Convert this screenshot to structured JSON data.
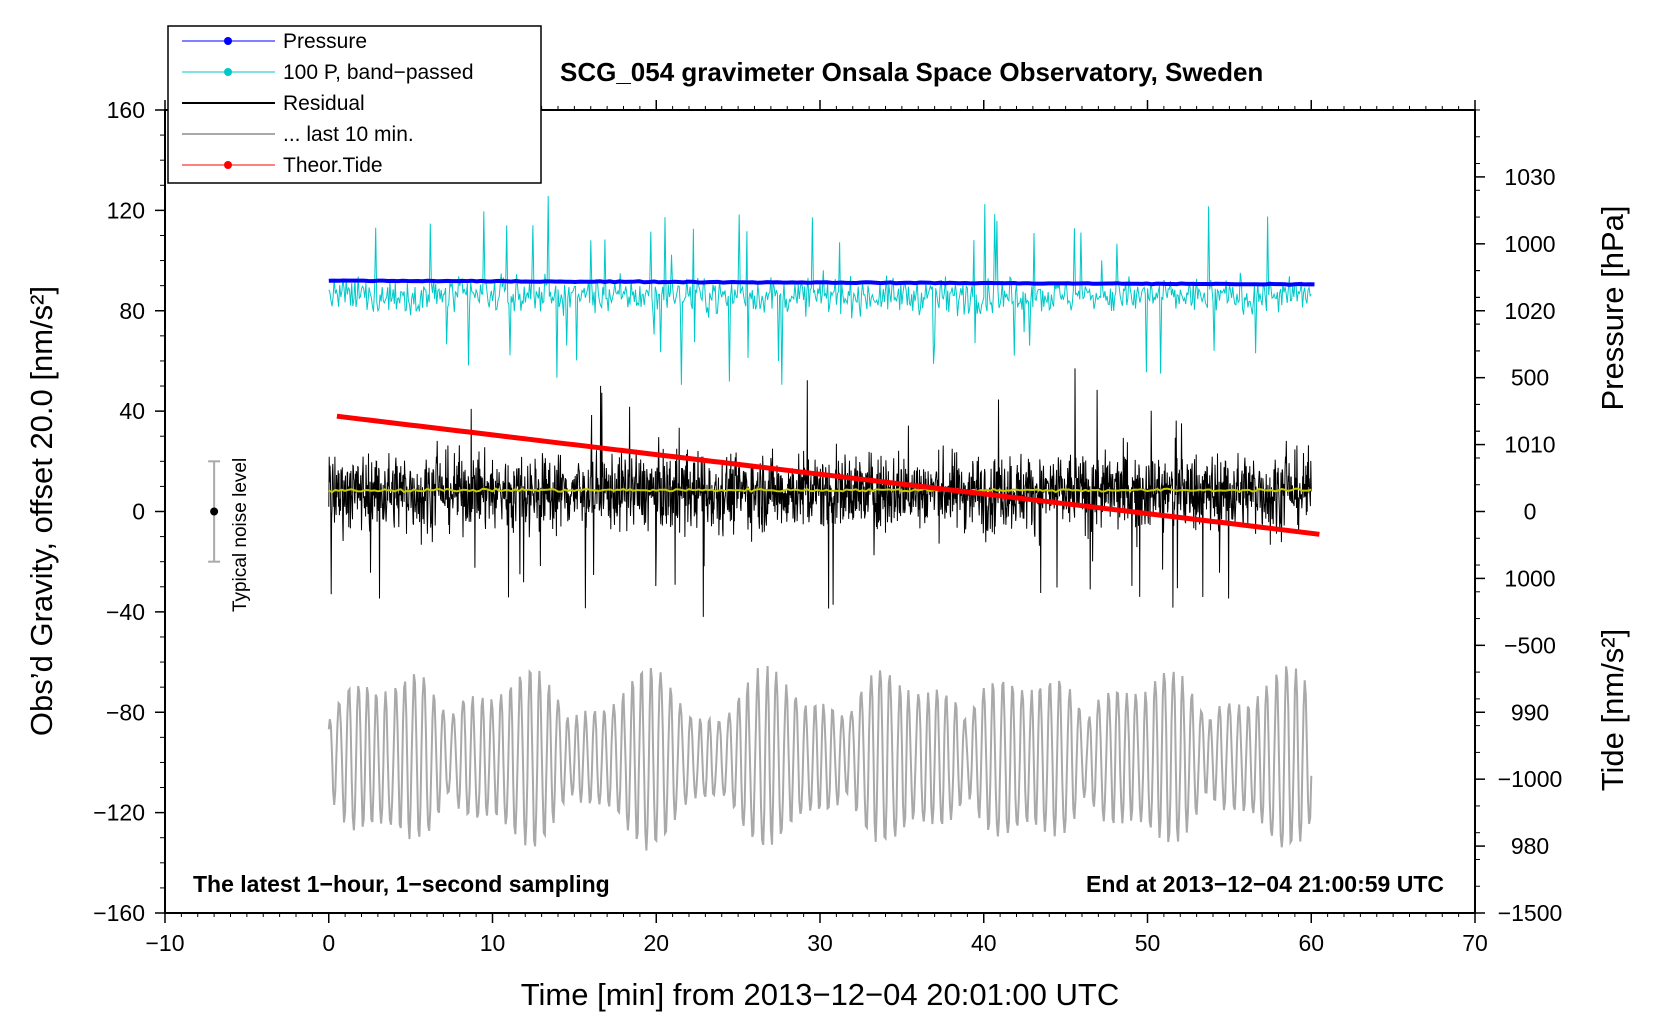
{
  "chart_data": {
    "type": "line",
    "title": "SCG_054 gravimeter Onsala Space Observatory, Sweden",
    "xlabel": "Time [min] from 2013−12−04 20:01:00 UTC",
    "ylabel_left": "Obs’d Gravity, offset 20.0 [nm/s²]",
    "ylabel_right_top": "Pressure [hPa]",
    "ylabel_right_bottom": "Tide [nm/s²]",
    "xlim": [
      -10,
      70
    ],
    "ylim_left": [
      -160,
      160
    ],
    "x_ticks": [
      -10,
      0,
      10,
      20,
      30,
      40,
      50,
      60,
      70
    ],
    "x_tick_labels": [
      "−10",
      "0",
      "10",
      "20",
      "30",
      "40",
      "50",
      "60",
      "70"
    ],
    "y_left_ticks": [
      160,
      120,
      80,
      40,
      0,
      -40,
      -80,
      -120,
      -160
    ],
    "y_left_tick_labels": [
      "160",
      "120",
      "80",
      "40",
      "0",
      "−40",
      "−80",
      "−120",
      "−160"
    ],
    "pressure_axis": {
      "range_hpa": [
        975,
        1035
      ],
      "ticks": [
        1030,
        1020,
        1010,
        1000,
        990,
        980
      ],
      "tick_labels": [
        "1030",
        "1020",
        "1010",
        "1000",
        "990",
        "980"
      ]
    },
    "tide_axis": {
      "range": [
        -1500,
        1500
      ],
      "ticks": [
        1000,
        500,
        0,
        -500,
        -1000,
        -1500
      ],
      "tick_labels": [
        "1000",
        "500",
        "0",
        "−500",
        "−1000",
        "−1500"
      ]
    },
    "annotations": {
      "bottom_left": "The latest 1−hour, 1−second sampling",
      "bottom_right": "End at 2013−12−04 21:00:59 UTC",
      "noise_label": "Typical noise level"
    },
    "noise_bar": {
      "x": -7,
      "center": 0,
      "half_range": 20
    },
    "legend": [
      {
        "label": "Pressure",
        "color": "#0000ff",
        "marker": true
      },
      {
        "label": "100 P, band−passed",
        "color": "#00c8c8",
        "marker": true
      },
      {
        "label": "Residual",
        "color": "#000000",
        "marker": false
      },
      {
        "label": "... last 10 min.",
        "color": "#a9a9a9",
        "marker": false
      },
      {
        "label": "Theor.Tide",
        "color": "#ff0000",
        "marker": true
      }
    ],
    "series": [
      {
        "name": "Pressure",
        "color": "#0000ff",
        "x_range": [
          0,
          60.2
        ],
        "start": 92,
        "end": 90.5,
        "unit": "left-axis nm/s² equivalent"
      },
      {
        "name": "100 P, band−passed",
        "color": "#00c8c8",
        "x_range": [
          0,
          60
        ],
        "baseline": 80,
        "amplitude": 12
      },
      {
        "name": "Residual",
        "color": "#000000",
        "x_range": [
          0,
          60
        ],
        "baseline": 8,
        "amplitude": 40
      },
      {
        "name": "Residual smoothed",
        "color": "#c8c800",
        "x_range": [
          0,
          60
        ],
        "baseline": 8.5,
        "amplitude": 1
      },
      {
        "name": "... last 10 min.",
        "color": "#a9a9a9",
        "x_range": [
          0,
          60
        ],
        "baseline": -98,
        "amplitude": 32
      },
      {
        "name": "Theor.Tide",
        "color": "#ff0000",
        "x_range": [
          0.5,
          60.5
        ],
        "start": 356,
        "end": -85,
        "unit": "nm/s² (tide axis)"
      }
    ]
  }
}
